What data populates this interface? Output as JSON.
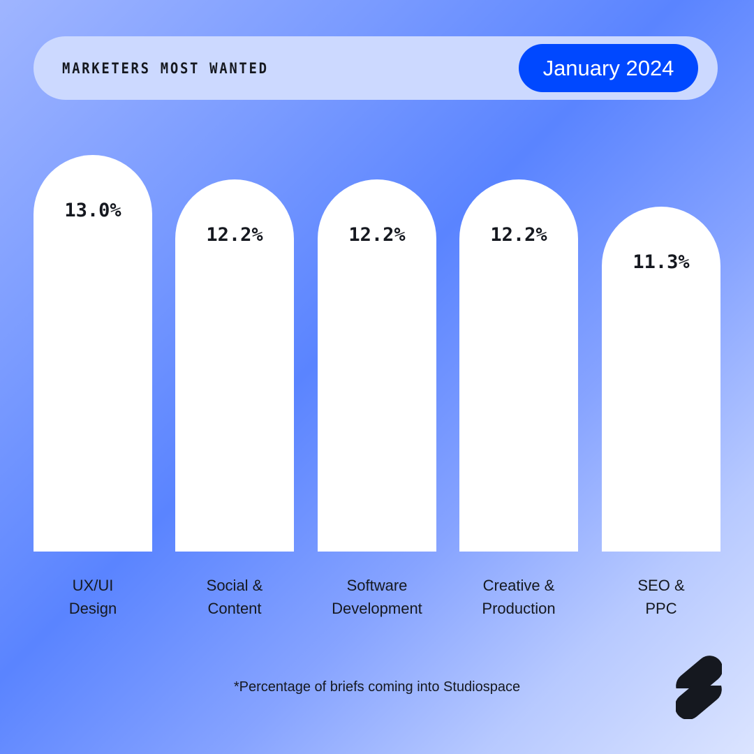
{
  "header": {
    "title": "MARKETERS MOST WANTED",
    "date": "January 2024"
  },
  "chart_data": {
    "type": "bar",
    "title": "MARKETERS MOST WANTED",
    "categories": [
      "UX/UI Design",
      "Social & Content",
      "Software Development",
      "Creative & Production",
      "SEO & PPC"
    ],
    "category_lines": [
      [
        "UX/UI",
        "Design"
      ],
      [
        "Social &",
        "Content"
      ],
      [
        "Software",
        "Development"
      ],
      [
        "Creative &",
        "Production"
      ],
      [
        "SEO &",
        "PPC"
      ]
    ],
    "values": [
      13.0,
      12.2,
      12.2,
      12.2,
      11.3
    ],
    "labels": [
      "13.0%",
      "12.2%",
      "12.2%",
      "12.2%",
      "11.3%"
    ],
    "unit": "%",
    "xlabel": "",
    "ylabel": "",
    "grid": false
  },
  "footnote": "*Percentage of briefs coming into Studiospace",
  "colors": {
    "accent": "#0048ff",
    "bar": "#ffffff",
    "text": "#15181f"
  }
}
